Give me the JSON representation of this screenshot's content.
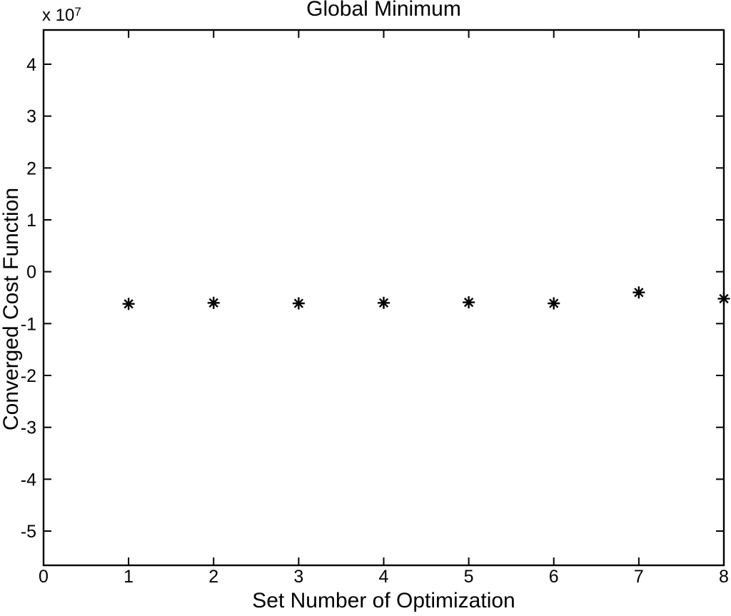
{
  "figure": {
    "background": "#ffffff",
    "foreground": "#000000"
  },
  "chart_data": {
    "type": "scatter",
    "title": "Global Minimum",
    "xlabel": "Set Number of Optimization",
    "ylabel": "Converged Cost Function",
    "y_axis_multiplier": {
      "base": "x 10",
      "exponent": "7",
      "value": 10000000
    },
    "marker": "asterisk",
    "marker_color": "#000000",
    "axis_color": "#000000",
    "grid": false,
    "box": true,
    "legend": null,
    "xlim": [
      0,
      8
    ],
    "ylim_e7": [
      -5.66,
      4.66
    ],
    "x_ticks": [
      0,
      1,
      2,
      3,
      4,
      5,
      6,
      7,
      8
    ],
    "y_ticks_e7": [
      4,
      3,
      2,
      1,
      0,
      -1,
      -2,
      -3,
      -4,
      -5
    ],
    "x": [
      1,
      2,
      3,
      4,
      5,
      6,
      7,
      8
    ],
    "y_e7": [
      -0.62,
      -0.6,
      -0.61,
      -0.6,
      -0.59,
      -0.61,
      -0.4,
      -0.52
    ],
    "y_value_scale": 10000000
  }
}
